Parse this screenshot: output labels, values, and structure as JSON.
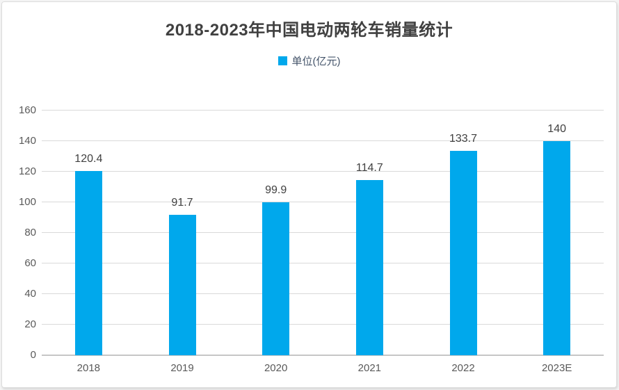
{
  "chart": {
    "title": "2018-2023年中国电动两轮车销量统计",
    "legend_label": "单位(亿元)"
  },
  "chart_data": {
    "type": "bar",
    "title": "2018-2023年中国电动两轮车销量统计",
    "categories": [
      "2018",
      "2019",
      "2020",
      "2021",
      "2022",
      "2023E"
    ],
    "series": [
      {
        "name": "单位(亿元)",
        "values": [
          120.4,
          91.7,
          99.9,
          114.7,
          133.7,
          140
        ]
      }
    ],
    "values": [
      120.4,
      91.7,
      99.9,
      114.7,
      133.7,
      140
    ],
    "data_labels": [
      "120.4",
      "91.7",
      "99.9",
      "114.7",
      "133.7",
      "140"
    ],
    "xlabel": "",
    "ylabel": "",
    "ylim": [
      0,
      160
    ],
    "yticks": [
      0,
      20,
      40,
      60,
      80,
      100,
      120,
      140,
      160
    ],
    "grid": true,
    "legend_position": "top",
    "colors": {
      "bar": "#00A8EC",
      "grid": "#D9D9D9",
      "axis_line": "#C6C6C6",
      "tick_label": "#595959",
      "data_label": "#404040",
      "title": "#404040",
      "legend_text": "#44546A"
    }
  }
}
